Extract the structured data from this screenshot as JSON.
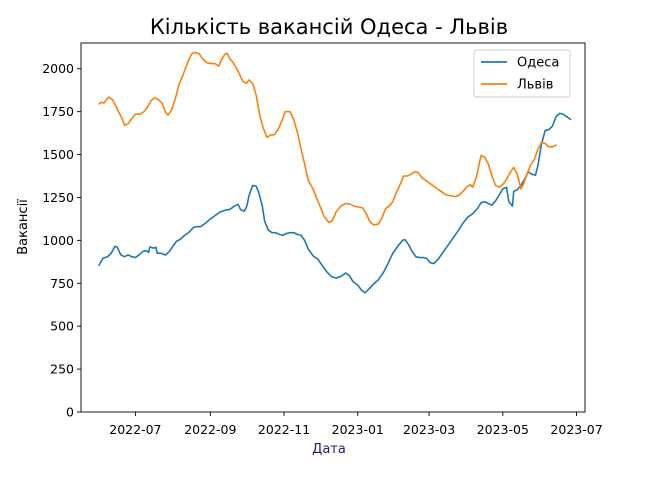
{
  "chart_data": {
    "type": "line",
    "title": "Кількість вакансій Одеса - Львів",
    "xlabel": "Дата",
    "ylabel": "Вакансії",
    "xlabel_color": "#1f1f7a",
    "ylim": [
      0,
      2150
    ],
    "xlim": [
      "2022-05-17",
      "2023-07-08"
    ],
    "y_ticks": [
      0,
      250,
      500,
      750,
      1000,
      1250,
      1500,
      1750,
      2000
    ],
    "x_ticks": [
      "2022-07",
      "2022-09",
      "2022-11",
      "2023-01",
      "2023-03",
      "2023-05",
      "2023-07"
    ],
    "grid": false,
    "legend_position": "top-right",
    "series": [
      {
        "name": "Одеса",
        "color": "#1f77b4",
        "points": [
          [
            "2022-06-01",
            855
          ],
          [
            "2022-06-04",
            895
          ],
          [
            "2022-06-08",
            905
          ],
          [
            "2022-06-11",
            925
          ],
          [
            "2022-06-14",
            965
          ],
          [
            "2022-06-16",
            960
          ],
          [
            "2022-06-19",
            915
          ],
          [
            "2022-06-22",
            905
          ],
          [
            "2022-06-25",
            915
          ],
          [
            "2022-06-28",
            905
          ],
          [
            "2022-07-01",
            900
          ],
          [
            "2022-07-04",
            915
          ],
          [
            "2022-07-07",
            935
          ],
          [
            "2022-07-10",
            940
          ],
          [
            "2022-07-12",
            930
          ],
          [
            "2022-07-13",
            962
          ],
          [
            "2022-07-16",
            955
          ],
          [
            "2022-07-18",
            960
          ],
          [
            "2022-07-19",
            925
          ],
          [
            "2022-07-22",
            925
          ],
          [
            "2022-07-26",
            915
          ],
          [
            "2022-07-29",
            935
          ],
          [
            "2022-08-01",
            965
          ],
          [
            "2022-08-04",
            995
          ],
          [
            "2022-08-07",
            1005
          ],
          [
            "2022-08-10",
            1025
          ],
          [
            "2022-08-14",
            1045
          ],
          [
            "2022-08-18",
            1075
          ],
          [
            "2022-08-21",
            1080
          ],
          [
            "2022-08-24",
            1080
          ],
          [
            "2022-08-28",
            1100
          ],
          [
            "2022-09-01",
            1125
          ],
          [
            "2022-09-05",
            1145
          ],
          [
            "2022-09-09",
            1165
          ],
          [
            "2022-09-13",
            1175
          ],
          [
            "2022-09-17",
            1180
          ],
          [
            "2022-09-21",
            1200
          ],
          [
            "2022-09-24",
            1210
          ],
          [
            "2022-09-26",
            1180
          ],
          [
            "2022-09-29",
            1170
          ],
          [
            "2022-10-01",
            1195
          ],
          [
            "2022-10-03",
            1260
          ],
          [
            "2022-10-06",
            1320
          ],
          [
            "2022-10-09",
            1315
          ],
          [
            "2022-10-11",
            1280
          ],
          [
            "2022-10-14",
            1200
          ],
          [
            "2022-10-16",
            1110
          ],
          [
            "2022-10-19",
            1060
          ],
          [
            "2022-10-22",
            1045
          ],
          [
            "2022-10-25",
            1045
          ],
          [
            "2022-10-28",
            1035
          ],
          [
            "2022-10-31",
            1030
          ],
          [
            "2022-11-03",
            1040
          ],
          [
            "2022-11-06",
            1045
          ],
          [
            "2022-11-09",
            1045
          ],
          [
            "2022-11-12",
            1035
          ],
          [
            "2022-11-15",
            1030
          ],
          [
            "2022-11-18",
            1000
          ],
          [
            "2022-11-21",
            950
          ],
          [
            "2022-11-25",
            910
          ],
          [
            "2022-11-29",
            890
          ],
          [
            "2022-12-02",
            860
          ],
          [
            "2022-12-06",
            820
          ],
          [
            "2022-12-10",
            790
          ],
          [
            "2022-12-14",
            780
          ],
          [
            "2022-12-18",
            790
          ],
          [
            "2022-12-22",
            810
          ],
          [
            "2022-12-25",
            795
          ],
          [
            "2022-12-28",
            760
          ],
          [
            "2023-01-01",
            740
          ],
          [
            "2023-01-04",
            710
          ],
          [
            "2023-01-07",
            695
          ],
          [
            "2023-01-10",
            715
          ],
          [
            "2023-01-14",
            745
          ],
          [
            "2023-01-18",
            770
          ],
          [
            "2023-01-22",
            810
          ],
          [
            "2023-01-26",
            865
          ],
          [
            "2023-01-30",
            925
          ],
          [
            "2023-02-03",
            965
          ],
          [
            "2023-02-07",
            1000
          ],
          [
            "2023-02-09",
            1005
          ],
          [
            "2023-02-12",
            975
          ],
          [
            "2023-02-15",
            935
          ],
          [
            "2023-02-18",
            905
          ],
          [
            "2023-02-21",
            900
          ],
          [
            "2023-02-24",
            900
          ],
          [
            "2023-02-27",
            895
          ],
          [
            "2023-03-02",
            870
          ],
          [
            "2023-03-05",
            865
          ],
          [
            "2023-03-09",
            895
          ],
          [
            "2023-03-13",
            935
          ],
          [
            "2023-03-17",
            975
          ],
          [
            "2023-03-21",
            1015
          ],
          [
            "2023-03-25",
            1055
          ],
          [
            "2023-03-29",
            1100
          ],
          [
            "2023-04-02",
            1135
          ],
          [
            "2023-04-06",
            1155
          ],
          [
            "2023-04-10",
            1185
          ],
          [
            "2023-04-13",
            1220
          ],
          [
            "2023-04-16",
            1225
          ],
          [
            "2023-04-19",
            1215
          ],
          [
            "2023-04-22",
            1205
          ],
          [
            "2023-04-25",
            1230
          ],
          [
            "2023-04-28",
            1265
          ],
          [
            "2023-05-01",
            1300
          ],
          [
            "2023-05-04",
            1310
          ],
          [
            "2023-05-06",
            1225
          ],
          [
            "2023-05-09",
            1200
          ],
          [
            "2023-05-10",
            1285
          ],
          [
            "2023-05-13",
            1295
          ],
          [
            "2023-05-16",
            1320
          ],
          [
            "2023-05-19",
            1355
          ],
          [
            "2023-05-22",
            1400
          ],
          [
            "2023-05-25",
            1385
          ],
          [
            "2023-05-28",
            1380
          ],
          [
            "2023-05-30",
            1435
          ],
          [
            "2023-06-02",
            1560
          ],
          [
            "2023-06-05",
            1640
          ],
          [
            "2023-06-08",
            1645
          ],
          [
            "2023-06-11",
            1665
          ],
          [
            "2023-06-14",
            1720
          ],
          [
            "2023-06-17",
            1740
          ],
          [
            "2023-06-20",
            1735
          ],
          [
            "2023-06-23",
            1720
          ],
          [
            "2023-06-26",
            1705
          ]
        ]
      },
      {
        "name": "Львів",
        "color": "#ff7f0e",
        "points": [
          [
            "2022-06-01",
            1795
          ],
          [
            "2022-06-03",
            1805
          ],
          [
            "2022-06-05",
            1800
          ],
          [
            "2022-06-07",
            1820
          ],
          [
            "2022-06-09",
            1835
          ],
          [
            "2022-06-12",
            1820
          ],
          [
            "2022-06-14",
            1795
          ],
          [
            "2022-06-17",
            1750
          ],
          [
            "2022-06-20",
            1710
          ],
          [
            "2022-06-22",
            1670
          ],
          [
            "2022-06-25",
            1680
          ],
          [
            "2022-06-28",
            1710
          ],
          [
            "2022-07-01",
            1735
          ],
          [
            "2022-07-05",
            1735
          ],
          [
            "2022-07-08",
            1750
          ],
          [
            "2022-07-11",
            1775
          ],
          [
            "2022-07-14",
            1815
          ],
          [
            "2022-07-17",
            1830
          ],
          [
            "2022-07-20",
            1820
          ],
          [
            "2022-07-23",
            1800
          ],
          [
            "2022-07-26",
            1745
          ],
          [
            "2022-07-28",
            1730
          ],
          [
            "2022-07-31",
            1760
          ],
          [
            "2022-08-03",
            1825
          ],
          [
            "2022-08-06",
            1905
          ],
          [
            "2022-08-10",
            1975
          ],
          [
            "2022-08-14",
            2050
          ],
          [
            "2022-08-17",
            2090
          ],
          [
            "2022-08-20",
            2095
          ],
          [
            "2022-08-23",
            2085
          ],
          [
            "2022-08-26",
            2055
          ],
          [
            "2022-08-29",
            2035
          ],
          [
            "2022-09-02",
            2030
          ],
          [
            "2022-09-05",
            2030
          ],
          [
            "2022-09-08",
            2015
          ],
          [
            "2022-09-10",
            2050
          ],
          [
            "2022-09-13",
            2085
          ],
          [
            "2022-09-15",
            2090
          ],
          [
            "2022-09-17",
            2060
          ],
          [
            "2022-09-20",
            2035
          ],
          [
            "2022-09-24",
            1985
          ],
          [
            "2022-09-28",
            1925
          ],
          [
            "2022-10-01",
            1915
          ],
          [
            "2022-10-03",
            1935
          ],
          [
            "2022-10-06",
            1915
          ],
          [
            "2022-10-09",
            1845
          ],
          [
            "2022-10-12",
            1725
          ],
          [
            "2022-10-15",
            1650
          ],
          [
            "2022-10-18",
            1600
          ],
          [
            "2022-10-21",
            1615
          ],
          [
            "2022-10-24",
            1615
          ],
          [
            "2022-10-27",
            1645
          ],
          [
            "2022-10-31",
            1710
          ],
          [
            "2022-11-02",
            1750
          ],
          [
            "2022-11-06",
            1750
          ],
          [
            "2022-11-09",
            1705
          ],
          [
            "2022-11-12",
            1630
          ],
          [
            "2022-11-15",
            1535
          ],
          [
            "2022-11-18",
            1445
          ],
          [
            "2022-11-21",
            1350
          ],
          [
            "2022-11-25",
            1300
          ],
          [
            "2022-11-28",
            1245
          ],
          [
            "2022-12-01",
            1195
          ],
          [
            "2022-12-04",
            1140
          ],
          [
            "2022-12-08",
            1105
          ],
          [
            "2022-12-11",
            1115
          ],
          [
            "2022-12-14",
            1165
          ],
          [
            "2022-12-18",
            1200
          ],
          [
            "2022-12-22",
            1215
          ],
          [
            "2022-12-26",
            1210
          ],
          [
            "2022-12-29",
            1200
          ],
          [
            "2023-01-01",
            1195
          ],
          [
            "2023-01-05",
            1190
          ],
          [
            "2023-01-08",
            1155
          ],
          [
            "2023-01-11",
            1110
          ],
          [
            "2023-01-14",
            1090
          ],
          [
            "2023-01-18",
            1095
          ],
          [
            "2023-01-21",
            1130
          ],
          [
            "2023-01-24",
            1185
          ],
          [
            "2023-01-27",
            1200
          ],
          [
            "2023-01-30",
            1225
          ],
          [
            "2023-02-02",
            1280
          ],
          [
            "2023-02-06",
            1340
          ],
          [
            "2023-02-08",
            1375
          ],
          [
            "2023-02-11",
            1375
          ],
          [
            "2023-02-14",
            1385
          ],
          [
            "2023-02-17",
            1400
          ],
          [
            "2023-02-20",
            1395
          ],
          [
            "2023-02-23",
            1365
          ],
          [
            "2023-02-27",
            1345
          ],
          [
            "2023-03-03",
            1325
          ],
          [
            "2023-03-07",
            1305
          ],
          [
            "2023-03-11",
            1285
          ],
          [
            "2023-03-15",
            1265
          ],
          [
            "2023-03-19",
            1260
          ],
          [
            "2023-03-23",
            1255
          ],
          [
            "2023-03-26",
            1265
          ],
          [
            "2023-03-29",
            1285
          ],
          [
            "2023-04-01",
            1310
          ],
          [
            "2023-04-04",
            1325
          ],
          [
            "2023-04-06",
            1310
          ],
          [
            "2023-04-09",
            1365
          ],
          [
            "2023-04-11",
            1430
          ],
          [
            "2023-04-13",
            1495
          ],
          [
            "2023-04-16",
            1485
          ],
          [
            "2023-04-19",
            1445
          ],
          [
            "2023-04-22",
            1375
          ],
          [
            "2023-04-25",
            1320
          ],
          [
            "2023-04-28",
            1310
          ],
          [
            "2023-05-01",
            1325
          ],
          [
            "2023-05-04",
            1355
          ],
          [
            "2023-05-07",
            1395
          ],
          [
            "2023-05-10",
            1425
          ],
          [
            "2023-05-13",
            1385
          ],
          [
            "2023-05-16",
            1300
          ],
          [
            "2023-05-18",
            1325
          ],
          [
            "2023-05-21",
            1385
          ],
          [
            "2023-05-24",
            1440
          ],
          [
            "2023-05-27",
            1470
          ],
          [
            "2023-05-30",
            1530
          ],
          [
            "2023-06-02",
            1570
          ],
          [
            "2023-06-05",
            1565
          ],
          [
            "2023-06-08",
            1545
          ],
          [
            "2023-06-11",
            1545
          ],
          [
            "2023-06-14",
            1555
          ]
        ]
      }
    ]
  }
}
